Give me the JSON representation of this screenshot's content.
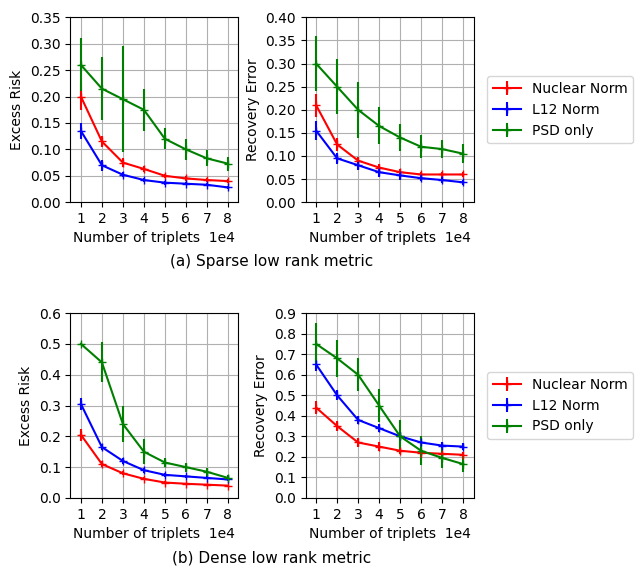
{
  "chart_data": [
    {
      "type": "line",
      "xlabel": "Number of triplets  1e4",
      "ylabel": "Excess Risk",
      "x": [
        1,
        2,
        3,
        4,
        5,
        6,
        7,
        8
      ],
      "xlim": [
        0.5,
        8.5
      ],
      "xticks": [
        1,
        2,
        3,
        4,
        5,
        6,
        7,
        8
      ],
      "ylim": [
        0.0,
        0.35
      ],
      "yticks": [
        {
          "value": 0.0,
          "label": "0.00"
        },
        0.05,
        {
          "value": 0.1,
          "label": "0.10"
        },
        0.15,
        {
          "value": 0.2,
          "label": "0.20"
        },
        0.25,
        {
          "value": 0.3,
          "label": "0.30"
        },
        0.35
      ],
      "grid": true,
      "marker": "+",
      "series": [
        {
          "name": "Nuclear Norm",
          "color": "red",
          "values": [
            0.2,
            0.115,
            0.075,
            0.063,
            0.05,
            0.045,
            0.042,
            0.04
          ],
          "errors": [
            0.025,
            0.01,
            0.008,
            0.005,
            0.004,
            0.004,
            0.003,
            0.003
          ]
        },
        {
          "name": "L12 Norm",
          "color": "blue",
          "values": [
            0.135,
            0.07,
            0.052,
            0.042,
            0.037,
            0.035,
            0.033,
            0.028
          ],
          "errors": [
            0.015,
            0.01,
            0.005,
            0.004,
            0.004,
            0.003,
            0.003,
            0.003
          ]
        },
        {
          "name": "PSD only",
          "color": "green",
          "values": [
            0.26,
            0.215,
            0.195,
            0.175,
            0.12,
            0.1,
            0.083,
            0.073
          ],
          "errors": [
            0.05,
            0.06,
            0.1,
            0.04,
            0.02,
            0.02,
            0.015,
            0.013
          ]
        }
      ]
    },
    {
      "type": "line",
      "xlabel": "Number of triplets  1e4",
      "ylabel": "Recovery Error",
      "x": [
        1,
        2,
        3,
        4,
        5,
        6,
        7,
        8
      ],
      "xlim": [
        0.5,
        8.5
      ],
      "xticks": [
        1,
        2,
        3,
        4,
        5,
        6,
        7,
        8
      ],
      "ylim": [
        0.0,
        0.4
      ],
      "yticks": [
        {
          "value": 0.0,
          "label": "0.00"
        },
        0.05,
        {
          "value": 0.1,
          "label": "0.10"
        },
        0.15,
        {
          "value": 0.2,
          "label": "0.20"
        },
        0.25,
        {
          "value": 0.3,
          "label": "0.30"
        },
        0.35,
        {
          "value": 0.4,
          "label": "0.40"
        }
      ],
      "grid": true,
      "marker": "+",
      "legend": "center left",
      "series": [
        {
          "name": "Nuclear Norm",
          "color": "red",
          "values": [
            0.21,
            0.125,
            0.09,
            0.075,
            0.065,
            0.06,
            0.06,
            0.06
          ],
          "errors": [
            0.025,
            0.015,
            0.008,
            0.007,
            0.006,
            0.005,
            0.005,
            0.005
          ]
        },
        {
          "name": "L12 Norm",
          "color": "blue",
          "values": [
            0.155,
            0.095,
            0.08,
            0.065,
            0.058,
            0.052,
            0.048,
            0.043
          ],
          "errors": [
            0.02,
            0.012,
            0.01,
            0.01,
            0.009,
            0.007,
            0.006,
            0.006
          ]
        },
        {
          "name": "PSD only",
          "color": "green",
          "values": [
            0.3,
            0.25,
            0.2,
            0.165,
            0.14,
            0.12,
            0.115,
            0.105
          ],
          "errors": [
            0.06,
            0.06,
            0.06,
            0.04,
            0.03,
            0.025,
            0.02,
            0.02
          ]
        }
      ]
    },
    {
      "type": "line",
      "xlabel": "Number of triplets  1e4",
      "ylabel": "Excess Risk",
      "x": [
        1,
        2,
        3,
        4,
        5,
        6,
        7,
        8
      ],
      "xlim": [
        0.5,
        8.5
      ],
      "xticks": [
        1,
        2,
        3,
        4,
        5,
        6,
        7,
        8
      ],
      "ylim": [
        0.0,
        0.6
      ],
      "yticks": [
        0.0,
        0.1,
        0.2,
        0.3,
        0.4,
        0.5,
        0.6
      ],
      "grid": true,
      "marker": "+",
      "series": [
        {
          "name": "Nuclear Norm",
          "color": "red",
          "values": [
            0.205,
            0.11,
            0.08,
            0.062,
            0.05,
            0.046,
            0.043,
            0.04
          ],
          "errors": [
            0.02,
            0.01,
            0.007,
            0.005,
            0.004,
            0.004,
            0.003,
            0.003
          ]
        },
        {
          "name": "L12 Norm",
          "color": "blue",
          "values": [
            0.305,
            0.165,
            0.12,
            0.09,
            0.075,
            0.07,
            0.065,
            0.06
          ],
          "errors": [
            0.02,
            0.01,
            0.01,
            0.008,
            0.007,
            0.006,
            0.005,
            0.005
          ]
        },
        {
          "name": "PSD only",
          "color": "green",
          "values": [
            0.5,
            0.44,
            0.24,
            0.15,
            0.115,
            0.1,
            0.085,
            0.065
          ],
          "errors": [
            0.0,
            0.065,
            0.06,
            0.04,
            0.015,
            0.015,
            0.013,
            0.01
          ]
        }
      ]
    },
    {
      "type": "line",
      "xlabel": "Number of triplets  1e4",
      "ylabel": "Recovery Error",
      "x": [
        1,
        2,
        3,
        4,
        5,
        6,
        7,
        8
      ],
      "xlim": [
        0.5,
        8.5
      ],
      "xticks": [
        1,
        2,
        3,
        4,
        5,
        6,
        7,
        8
      ],
      "ylim": [
        0.0,
        0.9
      ],
      "yticks": [
        0.0,
        0.1,
        0.2,
        0.3,
        0.4,
        0.5,
        0.6,
        0.7,
        0.8,
        0.9
      ],
      "grid": true,
      "marker": "+",
      "legend": "center left",
      "series": [
        {
          "name": "Nuclear Norm",
          "color": "red",
          "values": [
            0.44,
            0.35,
            0.27,
            0.25,
            0.23,
            0.22,
            0.215,
            0.21
          ],
          "errors": [
            0.03,
            0.025,
            0.02,
            0.02,
            0.018,
            0.018,
            0.015,
            0.015
          ]
        },
        {
          "name": "L12 Norm",
          "color": "blue",
          "values": [
            0.65,
            0.5,
            0.38,
            0.34,
            0.3,
            0.27,
            0.255,
            0.25
          ],
          "errors": [
            0.03,
            0.025,
            0.02,
            0.02,
            0.02,
            0.02,
            0.018,
            0.018
          ]
        },
        {
          "name": "PSD only",
          "color": "green",
          "values": [
            0.75,
            0.68,
            0.6,
            0.45,
            0.3,
            0.23,
            0.195,
            0.165
          ],
          "errors": [
            0.1,
            0.09,
            0.08,
            0.08,
            0.08,
            0.07,
            0.05,
            0.04
          ]
        }
      ]
    }
  ],
  "annotations": [
    "(a) Sparse low rank metric",
    "(b) Dense low rank metric"
  ]
}
